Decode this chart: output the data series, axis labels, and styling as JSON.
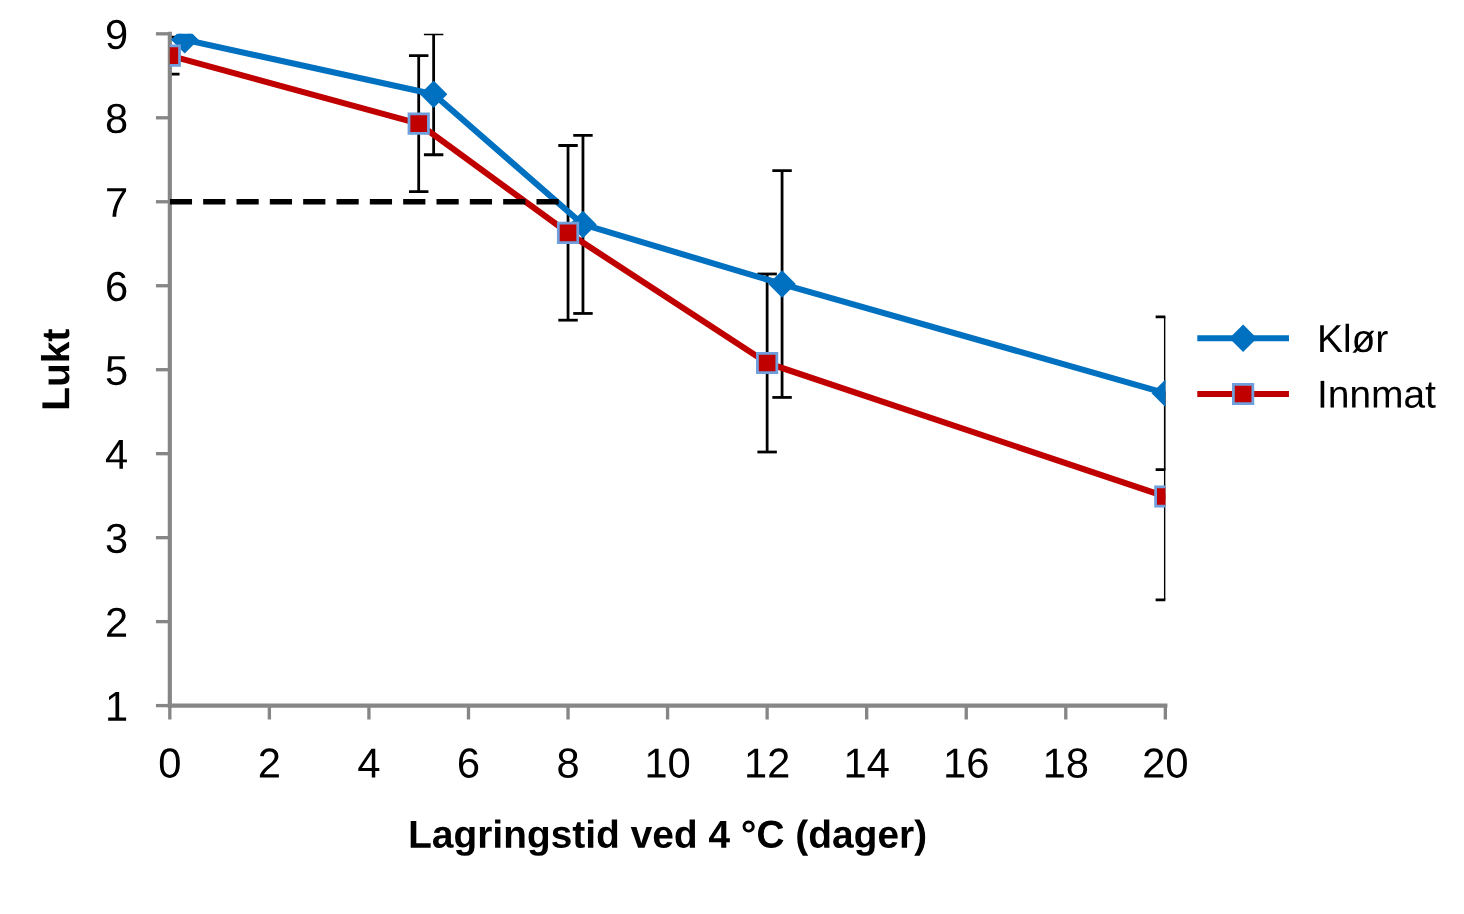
{
  "chart_data": {
    "type": "line",
    "xlabel": "Lagringstid ved 4 °C (dager)",
    "ylabel": "Lukt",
    "xlim": [
      0,
      20
    ],
    "xticks": [
      0,
      2,
      4,
      6,
      8,
      10,
      12,
      14,
      16,
      18,
      20
    ],
    "ylim": [
      1,
      9
    ],
    "yticks": [
      1,
      2,
      3,
      4,
      5,
      6,
      7,
      8,
      9
    ],
    "grid": false,
    "legend": "right",
    "line_style": "solid",
    "series": [
      {
        "name": "Klør",
        "color": "#0070c0",
        "marker": "diamond",
        "x": [
          0.3,
          5.3,
          8.3,
          12.3,
          20
        ],
        "values": [
          8.93,
          8.28,
          6.73,
          6.02,
          4.72
        ],
        "errors": [
          null,
          0.72,
          1.06,
          1.35,
          0.91
        ]
      },
      {
        "name": "Innmat",
        "color": "#c00000",
        "marker": "square",
        "x": [
          0,
          5,
          8,
          12,
          20
        ],
        "values": [
          8.74,
          7.93,
          6.63,
          5.08,
          3.49
        ],
        "errors": [
          0.22,
          0.81,
          1.04,
          1.06,
          1.23
        ]
      },
      {
        "color": "#000000",
        "marker": "none",
        "line_style": "dashed",
        "x": [
          0,
          8
        ],
        "values": [
          7,
          7
        ]
      }
    ]
  }
}
